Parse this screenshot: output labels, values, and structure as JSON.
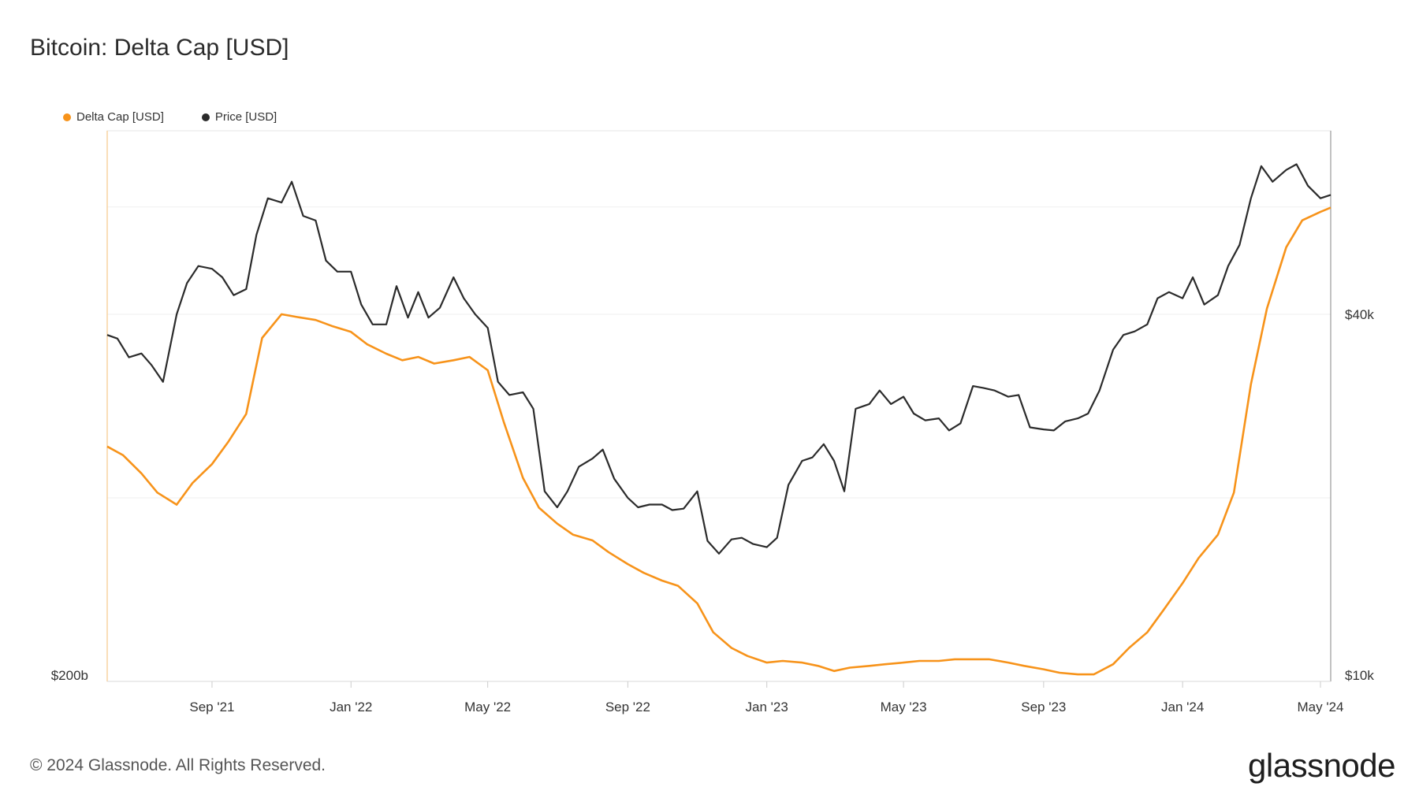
{
  "title": "Bitcoin: Delta Cap [USD]",
  "footer": "© 2024 Glassnode. All Rights Reserved.",
  "brand": "glassnode",
  "colors": {
    "delta_cap": "#f7931a",
    "price": "#2b2b2b",
    "grid": "#eeeeee",
    "axis": "#cccccc"
  },
  "chart_data": {
    "type": "line",
    "title": "Bitcoin: Delta Cap [USD]",
    "x_range": [
      "2021-06-01",
      "2024-05-10"
    ],
    "x_tick_labels": [
      {
        "date": "2021-09-01",
        "label": "Sep '21"
      },
      {
        "date": "2022-01-01",
        "label": "Jan '22"
      },
      {
        "date": "2022-05-01",
        "label": "May '22"
      },
      {
        "date": "2022-09-01",
        "label": "Sep '22"
      },
      {
        "date": "2023-01-01",
        "label": "Jan '23"
      },
      {
        "date": "2023-05-01",
        "label": "May '23"
      },
      {
        "date": "2023-09-01",
        "label": "Sep '23"
      },
      {
        "date": "2024-01-01",
        "label": "Jan '24"
      },
      {
        "date": "2024-05-01",
        "label": "May '24"
      }
    ],
    "left_axis": {
      "scale": "log",
      "visible_tick_labels": [
        "$200b"
      ]
    },
    "right_axis": {
      "scale": "log",
      "range": [
        10000,
        80000
      ],
      "tick_labels": [
        {
          "value": 10000,
          "label": "$10k"
        },
        {
          "value": 40000,
          "label": "$40k"
        }
      ]
    },
    "grid": true,
    "legend_position": "top-left",
    "series": [
      {
        "name": "Delta Cap [USD]",
        "axis": "left",
        "color": "#f7931a",
        "x": [
          "2021-06-01",
          "2021-06-15",
          "2021-07-01",
          "2021-07-15",
          "2021-08-01",
          "2021-08-15",
          "2021-09-01",
          "2021-09-15",
          "2021-10-01",
          "2021-10-15",
          "2021-11-01",
          "2021-11-15",
          "2021-12-01",
          "2021-12-15",
          "2022-01-01",
          "2022-01-15",
          "2022-02-01",
          "2022-02-15",
          "2022-03-01",
          "2022-03-15",
          "2022-04-01",
          "2022-04-15",
          "2022-05-01",
          "2022-05-15",
          "2022-06-01",
          "2022-06-15",
          "2022-07-01",
          "2022-07-15",
          "2022-08-01",
          "2022-08-15",
          "2022-09-01",
          "2022-09-15",
          "2022-10-01",
          "2022-10-15",
          "2022-11-01",
          "2022-11-15",
          "2022-12-01",
          "2022-12-15",
          "2023-01-01",
          "2023-01-15",
          "2023-02-01",
          "2023-02-15",
          "2023-03-01",
          "2023-03-15",
          "2023-04-01",
          "2023-04-15",
          "2023-05-01",
          "2023-05-15",
          "2023-06-01",
          "2023-06-15",
          "2023-07-01",
          "2023-07-15",
          "2023-08-01",
          "2023-08-15",
          "2023-09-01",
          "2023-09-15",
          "2023-10-01",
          "2023-10-15",
          "2023-11-01",
          "2023-11-15",
          "2023-12-01",
          "2023-12-15",
          "2024-01-01",
          "2024-01-15",
          "2024-02-01",
          "2024-02-15",
          "2024-03-01",
          "2024-03-15",
          "2024-04-01",
          "2024-04-15",
          "2024-05-01",
          "2024-05-10"
        ],
        "values": [
          380,
          370,
          350,
          330,
          318,
          340,
          360,
          385,
          420,
          530,
          570,
          565,
          560,
          550,
          540,
          520,
          505,
          495,
          500,
          490,
          495,
          500,
          480,
          410,
          345,
          315,
          300,
          290,
          285,
          275,
          265,
          258,
          252,
          248,
          235,
          215,
          205,
          200,
          196,
          197,
          196,
          194,
          191,
          193,
          194,
          195,
          196,
          197,
          197,
          198,
          198,
          198,
          196,
          194,
          192,
          190,
          189,
          189,
          195,
          205,
          215,
          230,
          250,
          270,
          290,
          330,
          460,
          580,
          700,
          760,
          780,
          790
        ]
      },
      {
        "name": "Price [USD]",
        "axis": "right",
        "color": "#2b2b2b",
        "x": [
          "2021-06-01",
          "2021-06-10",
          "2021-06-20",
          "2021-07-01",
          "2021-07-10",
          "2021-07-20",
          "2021-08-01",
          "2021-08-10",
          "2021-08-20",
          "2021-09-01",
          "2021-09-10",
          "2021-09-20",
          "2021-10-01",
          "2021-10-10",
          "2021-10-20",
          "2021-11-01",
          "2021-11-10",
          "2021-11-20",
          "2021-12-01",
          "2021-12-10",
          "2021-12-20",
          "2022-01-01",
          "2022-01-10",
          "2022-01-20",
          "2022-02-01",
          "2022-02-10",
          "2022-02-20",
          "2022-03-01",
          "2022-03-10",
          "2022-03-20",
          "2022-04-01",
          "2022-04-10",
          "2022-04-20",
          "2022-05-01",
          "2022-05-10",
          "2022-05-20",
          "2022-06-01",
          "2022-06-10",
          "2022-06-20",
          "2022-07-01",
          "2022-07-10",
          "2022-07-20",
          "2022-08-01",
          "2022-08-10",
          "2022-08-20",
          "2022-09-01",
          "2022-09-10",
          "2022-09-20",
          "2022-10-01",
          "2022-10-10",
          "2022-10-20",
          "2022-11-01",
          "2022-11-10",
          "2022-11-20",
          "2022-12-01",
          "2022-12-10",
          "2022-12-20",
          "2023-01-01",
          "2023-01-10",
          "2023-01-20",
          "2023-02-01",
          "2023-02-10",
          "2023-02-20",
          "2023-03-01",
          "2023-03-10",
          "2023-03-20",
          "2023-04-01",
          "2023-04-10",
          "2023-04-20",
          "2023-05-01",
          "2023-05-10",
          "2023-05-20",
          "2023-06-01",
          "2023-06-10",
          "2023-06-20",
          "2023-07-01",
          "2023-07-10",
          "2023-07-20",
          "2023-08-01",
          "2023-08-10",
          "2023-08-20",
          "2023-09-01",
          "2023-09-10",
          "2023-09-20",
          "2023-10-01",
          "2023-10-10",
          "2023-10-20",
          "2023-11-01",
          "2023-11-10",
          "2023-11-20",
          "2023-12-01",
          "2023-12-10",
          "2023-12-20",
          "2024-01-01",
          "2024-01-10",
          "2024-01-20",
          "2024-02-01",
          "2024-02-10",
          "2024-02-20",
          "2024-03-01",
          "2024-03-10",
          "2024-03-20",
          "2024-04-01",
          "2024-04-10",
          "2024-04-20",
          "2024-05-01",
          "2024-05-10"
        ],
        "values": [
          37000,
          36500,
          34000,
          34500,
          33000,
          31000,
          40000,
          45000,
          48000,
          47500,
          46000,
          43000,
          44000,
          54000,
          62000,
          61000,
          66000,
          58000,
          57000,
          49000,
          47000,
          47000,
          41500,
          38500,
          38500,
          44500,
          39500,
          43500,
          39500,
          41000,
          46000,
          42500,
          40000,
          38000,
          31000,
          29500,
          29800,
          28000,
          20500,
          19300,
          20500,
          22500,
          23200,
          24000,
          21500,
          20000,
          19300,
          19500,
          19500,
          19100,
          19200,
          20500,
          17000,
          16200,
          17100,
          17200,
          16800,
          16600,
          17200,
          21000,
          23000,
          23300,
          24500,
          23000,
          20500,
          28000,
          28500,
          30000,
          28500,
          29300,
          27500,
          26800,
          27000,
          25800,
          26500,
          30500,
          30300,
          30000,
          29300,
          29500,
          26100,
          25900,
          25800,
          26700,
          27000,
          27500,
          30000,
          35000,
          37000,
          37500,
          38500,
          42500,
          43500,
          42500,
          46000,
          41500,
          43000,
          48000,
          52000,
          62000,
          70000,
          66000,
          69000,
          70500,
          65000,
          62000,
          62800
        ]
      }
    ]
  }
}
